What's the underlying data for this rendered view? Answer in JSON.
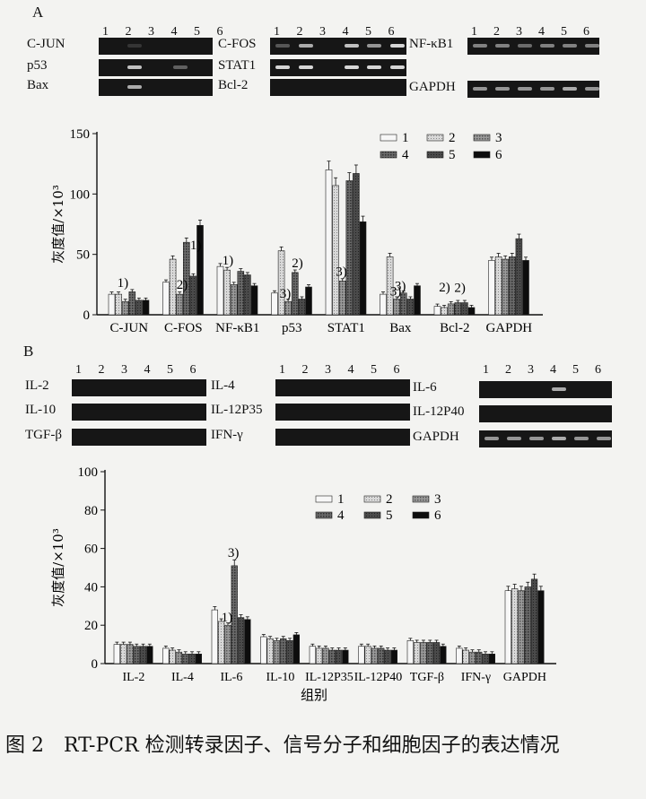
{
  "panel_a": {
    "letter": "A",
    "gels": [
      {
        "group": 0,
        "lanes": [
          "1",
          "2",
          "3",
          "4",
          "5",
          "6"
        ],
        "rows": [
          "C-JUN",
          "p53",
          "Bax"
        ]
      },
      {
        "group": 1,
        "lanes": [
          "1",
          "2",
          "3",
          "4",
          "5",
          "6"
        ],
        "rows": [
          "C-FOS",
          "STAT1",
          "Bcl-2"
        ]
      },
      {
        "group": 2,
        "lanes": [
          "1",
          "2",
          "3",
          "4",
          "5",
          "6"
        ],
        "rows": [
          "NF-κB1",
          "GAPDH"
        ]
      }
    ]
  },
  "panel_b": {
    "letter": "B",
    "gels": [
      {
        "group": 0,
        "lanes": [
          "1",
          "2",
          "3",
          "4",
          "5",
          "6"
        ],
        "rows": [
          "IL-2",
          "IL-10",
          "TGF-β"
        ]
      },
      {
        "group": 1,
        "lanes": [
          "1",
          "2",
          "3",
          "4",
          "5",
          "6"
        ],
        "rows": [
          "IL-4",
          "IL-12P35",
          "IFN-γ"
        ]
      },
      {
        "group": 2,
        "lanes": [
          "1",
          "2",
          "3",
          "4",
          "5",
          "6"
        ],
        "rows": [
          "IL-6",
          "IL-12P40",
          "GAPDH"
        ]
      }
    ]
  },
  "chart_data": [
    {
      "type": "bar",
      "ylabel": "灰度值/×10³",
      "xlabel": "",
      "ylim": [
        0,
        150
      ],
      "yticks": [
        "0",
        "50",
        "100",
        "150"
      ],
      "legend": {
        "position": "top-right",
        "labels": [
          "1",
          "2",
          "3",
          "4",
          "5",
          "6"
        ]
      },
      "categories": [
        "C-JUN",
        "C-FOS",
        "NF-κB1",
        "p53",
        "STAT1",
        "Bax",
        "Bcl-2",
        "GAPDH"
      ],
      "series": [
        {
          "name": "1",
          "values": [
            17,
            27,
            40,
            18,
            120,
            17,
            7,
            45
          ]
        },
        {
          "name": "2",
          "values": [
            17,
            46,
            37,
            53,
            107,
            48,
            6,
            48
          ]
        },
        {
          "name": "3",
          "values": [
            11,
            17,
            25,
            11,
            28,
            13,
            9,
            46
          ]
        },
        {
          "name": "4",
          "values": [
            19,
            60,
            36,
            35,
            111,
            18,
            10,
            48
          ]
        },
        {
          "name": "5",
          "values": [
            12,
            32,
            33,
            13,
            117,
            13,
            10,
            63
          ]
        },
        {
          "name": "6",
          "values": [
            12,
            74,
            24,
            23,
            77,
            24,
            6,
            45
          ]
        }
      ],
      "annotations": [
        {
          "category": "C-JUN",
          "text": "1)"
        },
        {
          "category": "C-FOS",
          "text": "2)"
        },
        {
          "category": "C-FOS",
          "text": "1)"
        },
        {
          "category": "NF-κB1",
          "text": "1)"
        },
        {
          "category": "p53",
          "text": "3)"
        },
        {
          "category": "p53",
          "text": "2)"
        },
        {
          "category": "STAT1",
          "text": "3)"
        },
        {
          "category": "Bax",
          "text": "3)"
        },
        {
          "category": "Bax",
          "text": "3)"
        },
        {
          "category": "Bcl-2",
          "text": "2)"
        },
        {
          "category": "Bcl-2",
          "text": "2)"
        }
      ]
    },
    {
      "type": "bar",
      "ylabel": "灰度值/×10³",
      "xlabel": "组别",
      "ylim": [
        0,
        100
      ],
      "yticks": [
        "0",
        "20",
        "40",
        "60",
        "80",
        "100"
      ],
      "legend": {
        "position": "top-right",
        "labels": [
          "1",
          "2",
          "3",
          "4",
          "5",
          "6"
        ]
      },
      "categories": [
        "IL-2",
        "IL-4",
        "IL-6",
        "IL-10",
        "IL-12P35",
        "IL-12P40",
        "TGF-β",
        "IFN-γ",
        "GAPDH"
      ],
      "series": [
        {
          "name": "1",
          "values": [
            10,
            8,
            28,
            14,
            9,
            9,
            12,
            8,
            38
          ]
        },
        {
          "name": "2",
          "values": [
            10,
            7,
            22,
            13,
            8,
            9,
            11,
            7,
            39
          ]
        },
        {
          "name": "3",
          "values": [
            10,
            6,
            20,
            12,
            8,
            8,
            11,
            6,
            38
          ]
        },
        {
          "name": "4",
          "values": [
            9,
            5,
            51,
            13,
            7,
            8,
            11,
            6,
            40
          ]
        },
        {
          "name": "5",
          "values": [
            9,
            5,
            24,
            12,
            7,
            7,
            11,
            5,
            44
          ]
        },
        {
          "name": "6",
          "values": [
            9,
            5,
            23,
            15,
            7,
            7,
            9,
            5,
            38
          ]
        }
      ],
      "annotations": [
        {
          "category": "IL-6",
          "text": "1)"
        },
        {
          "category": "IL-6",
          "text": "3)"
        }
      ]
    }
  ],
  "caption": {
    "figure": "图 2",
    "text": "RT-PCR 检测转录因子、信号分子和细胞因子的表达情况"
  }
}
